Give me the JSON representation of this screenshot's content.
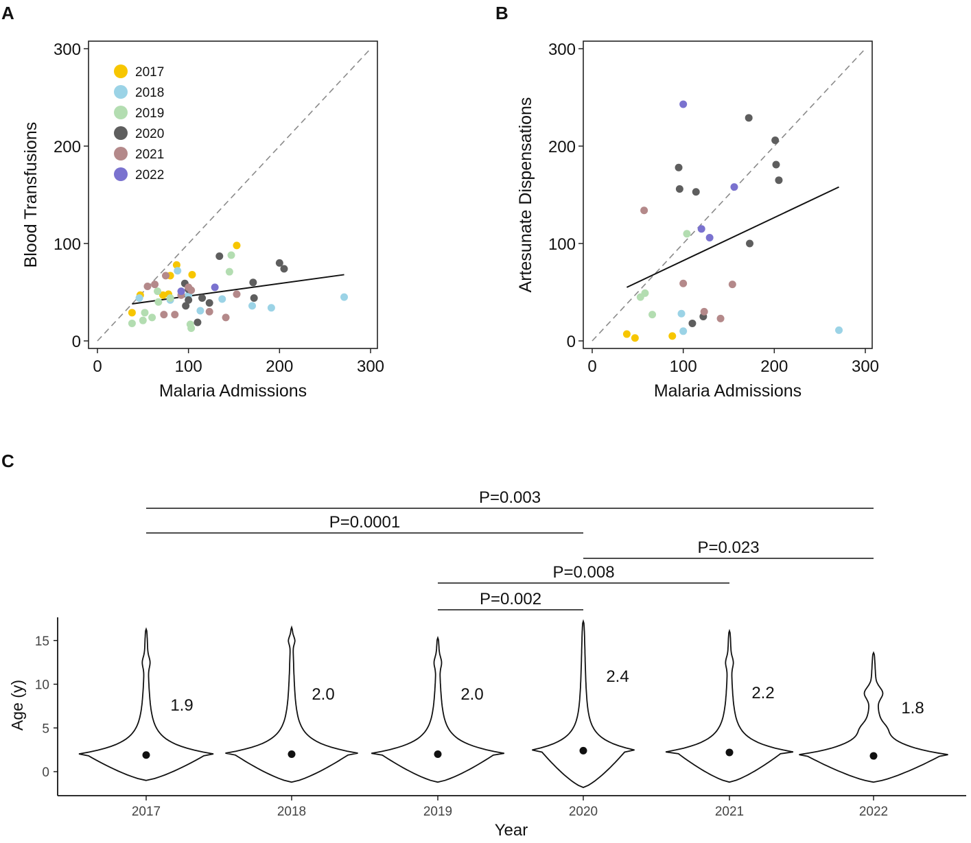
{
  "panels": {
    "a": "A",
    "b": "B",
    "c": "C"
  },
  "colors": {
    "2017": "#F7C600",
    "2018": "#9BD3E6",
    "2019": "#B3DDB1",
    "2020": "#5E5E5E",
    "2021": "#B4898A",
    "2022": "#7A72CF"
  },
  "chart_data": [
    {
      "id": "A",
      "type": "scatter",
      "xlabel": "Malaria Admissions",
      "ylabel": "Blood Transfusions",
      "xlim": [
        0,
        300
      ],
      "ylim": [
        0,
        300
      ],
      "xticks": [
        "0",
        "100",
        "200",
        "300"
      ],
      "yticks": [
        "0",
        "100",
        "200",
        "300"
      ],
      "legend": {
        "position": "top-left",
        "entries": [
          "2017",
          "2018",
          "2019",
          "2020",
          "2021",
          "2022"
        ]
      },
      "reference_line": {
        "style": "dashed",
        "x": [
          0,
          300
        ],
        "y": [
          0,
          300
        ]
      },
      "trend_line": {
        "x": [
          38,
          271
        ],
        "y": [
          38,
          68
        ]
      },
      "series": [
        {
          "name": "2017",
          "points": [
            [
              38,
              29
            ],
            [
              47,
              47
            ],
            [
              72,
              47
            ],
            [
              78,
              48
            ],
            [
              80,
              67
            ],
            [
              87,
              78
            ],
            [
              104,
              68
            ],
            [
              153,
              98
            ]
          ]
        },
        {
          "name": "2018",
          "points": [
            [
              46,
              44
            ],
            [
              80,
              42
            ],
            [
              88,
              72
            ],
            [
              92,
              47
            ],
            [
              100,
              47
            ],
            [
              113,
              31
            ],
            [
              137,
              43
            ],
            [
              170,
              36
            ],
            [
              191,
              34
            ],
            [
              271,
              45
            ]
          ]
        },
        {
          "name": "2019",
          "points": [
            [
              38,
              18
            ],
            [
              50,
              21
            ],
            [
              52,
              29
            ],
            [
              60,
              24
            ],
            [
              66,
              51
            ],
            [
              67,
              40
            ],
            [
              80,
              44
            ],
            [
              102,
              17
            ],
            [
              103,
              13
            ],
            [
              145,
              71
            ],
            [
              147,
              88
            ]
          ]
        },
        {
          "name": "2020",
          "points": [
            [
              96,
              59
            ],
            [
              97,
              36
            ],
            [
              100,
              42
            ],
            [
              100,
              53
            ],
            [
              110,
              19
            ],
            [
              115,
              44
            ],
            [
              123,
              39
            ],
            [
              134,
              87
            ],
            [
              171,
              60
            ],
            [
              172,
              44
            ],
            [
              200,
              80
            ],
            [
              205,
              74
            ]
          ]
        },
        {
          "name": "2021",
          "points": [
            [
              55,
              56
            ],
            [
              63,
              58
            ],
            [
              73,
              27
            ],
            [
              75,
              67
            ],
            [
              85,
              27
            ],
            [
              92,
              47
            ],
            [
              100,
              55
            ],
            [
              103,
              52
            ],
            [
              123,
              30
            ],
            [
              141,
              24
            ],
            [
              153,
              48
            ]
          ]
        },
        {
          "name": "2022",
          "points": [
            [
              92,
              51
            ],
            [
              129,
              55
            ]
          ]
        }
      ]
    },
    {
      "id": "B",
      "type": "scatter",
      "xlabel": "Malaria Admissions",
      "ylabel": "Artesunate Dispensations",
      "xlim": [
        0,
        300
      ],
      "ylim": [
        0,
        300
      ],
      "xticks": [
        "0",
        "100",
        "200",
        "300"
      ],
      "yticks": [
        "0",
        "100",
        "200",
        "300"
      ],
      "reference_line": {
        "style": "dashed",
        "x": [
          0,
          300
        ],
        "y": [
          0,
          300
        ]
      },
      "trend_line": {
        "x": [
          38,
          271
        ],
        "y": [
          55,
          158
        ]
      },
      "series": [
        {
          "name": "2017",
          "points": [
            [
              38,
              7
            ],
            [
              47,
              3
            ],
            [
              88,
              5
            ]
          ]
        },
        {
          "name": "2018",
          "points": [
            [
              98,
              28
            ],
            [
              100,
              10
            ],
            [
              271,
              11
            ]
          ]
        },
        {
          "name": "2019",
          "points": [
            [
              53,
              45
            ],
            [
              58,
              49
            ],
            [
              66,
              27
            ],
            [
              104,
              110
            ]
          ]
        },
        {
          "name": "2020",
          "points": [
            [
              95,
              178
            ],
            [
              96,
              156
            ],
            [
              110,
              18
            ],
            [
              114,
              153
            ],
            [
              122,
              25
            ],
            [
              172,
              229
            ],
            [
              173,
              100
            ],
            [
              201,
              206
            ],
            [
              202,
              181
            ],
            [
              205,
              165
            ]
          ]
        },
        {
          "name": "2021",
          "points": [
            [
              57,
              134
            ],
            [
              100,
              59
            ],
            [
              123,
              30
            ],
            [
              141,
              23
            ],
            [
              154,
              58
            ]
          ]
        },
        {
          "name": "2022",
          "points": [
            [
              100,
              243
            ],
            [
              120,
              115
            ],
            [
              129,
              106
            ],
            [
              156,
              158
            ]
          ]
        }
      ]
    },
    {
      "id": "C",
      "type": "violin",
      "xlabel": "Year",
      "ylabel": "Age (y)",
      "ylim": [
        -2.5,
        18
      ],
      "yticks": [
        "0",
        "5",
        "10",
        "15"
      ],
      "categories": [
        "2017",
        "2018",
        "2019",
        "2020",
        "2021",
        "2022"
      ],
      "medians": [
        1.9,
        2.0,
        2.0,
        2.4,
        2.2,
        1.8
      ],
      "median_labels": [
        "1.9",
        "2.0",
        "2.0",
        "2.4",
        "2.2",
        "1.8"
      ],
      "ranges": [
        [
          -1.0,
          16.3
        ],
        [
          -1.2,
          16.5
        ],
        [
          -1.2,
          15.3
        ],
        [
          -1.8,
          17.2
        ],
        [
          -1.2,
          16.1
        ],
        [
          -1.2,
          13.6
        ]
      ],
      "comparisons": [
        {
          "from": "2017",
          "to": "2022",
          "label": "P=0.003"
        },
        {
          "from": "2017",
          "to": "2020",
          "label": "P=0.0001"
        },
        {
          "from": "2020",
          "to": "2022",
          "label": "P=0.023"
        },
        {
          "from": "2019",
          "to": "2021",
          "label": "P=0.008"
        },
        {
          "from": "2019",
          "to": "2020",
          "label": "P=0.002"
        }
      ]
    }
  ]
}
